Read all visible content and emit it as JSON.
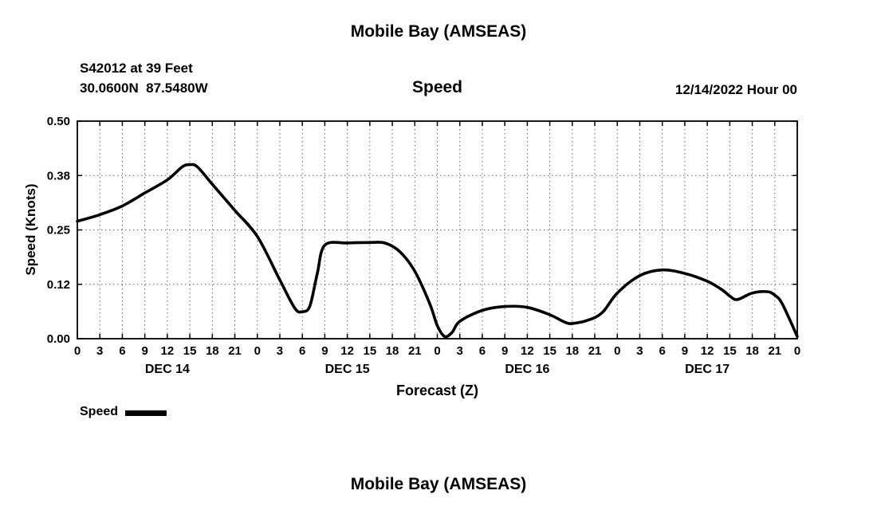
{
  "header": {
    "title": "Mobile Bay (AMSEAS)",
    "station": "S42012 at 39 Feet",
    "coords": "30.0600N  87.5480W",
    "plot_title": "Speed",
    "datetime": "12/14/2022 Hour 00"
  },
  "legend": {
    "label": "Speed"
  },
  "footer": {
    "next_title": "Mobile Bay (AMSEAS)"
  },
  "chart_data": {
    "type": "line",
    "title": "Speed",
    "xlabel": "Forecast (Z)",
    "ylabel": "Speed (Knots)",
    "x_unit": "hours from forecast start (Z)",
    "xlim": [
      0,
      96
    ],
    "ylim": [
      0,
      0.5
    ],
    "grid": "dashed",
    "legend_position": "below-left",
    "x_tick_step": 3,
    "x_tick_label_mod": 24,
    "y_ticks": [
      {
        "value": 0.0,
        "label": "0.00"
      },
      {
        "value": 0.125,
        "label": "0.12"
      },
      {
        "value": 0.25,
        "label": "0.25"
      },
      {
        "value": 0.375,
        "label": "0.38"
      },
      {
        "value": 0.5,
        "label": "0.50"
      }
    ],
    "day_labels": [
      {
        "label": "DEC 14",
        "hour": 12
      },
      {
        "label": "DEC 15",
        "hour": 36
      },
      {
        "label": "DEC 16",
        "hour": 60
      },
      {
        "label": "DEC 17",
        "hour": 84
      }
    ],
    "series": [
      {
        "name": "Speed",
        "color": "#000000",
        "x": [
          0,
          3,
          6,
          9,
          12,
          14,
          15,
          16,
          18,
          21,
          24,
          27,
          29,
          30,
          31,
          32,
          33,
          36,
          39,
          41,
          43,
          45,
          47,
          48,
          49,
          50,
          51,
          54,
          57,
          60,
          63,
          65,
          66,
          68,
          70,
          72,
          75,
          78,
          81,
          84,
          86,
          87,
          88,
          90,
          92,
          93,
          94,
          96
        ],
        "values": [
          0.27,
          0.285,
          0.305,
          0.335,
          0.365,
          0.395,
          0.4,
          0.395,
          0.355,
          0.295,
          0.235,
          0.135,
          0.07,
          0.062,
          0.075,
          0.15,
          0.215,
          0.22,
          0.221,
          0.22,
          0.2,
          0.155,
          0.08,
          0.03,
          0.005,
          0.015,
          0.04,
          0.065,
          0.074,
          0.072,
          0.055,
          0.038,
          0.035,
          0.042,
          0.06,
          0.105,
          0.145,
          0.158,
          0.15,
          0.132,
          0.112,
          0.098,
          0.09,
          0.105,
          0.108,
          0.1,
          0.08,
          0.005
        ]
      }
    ]
  }
}
